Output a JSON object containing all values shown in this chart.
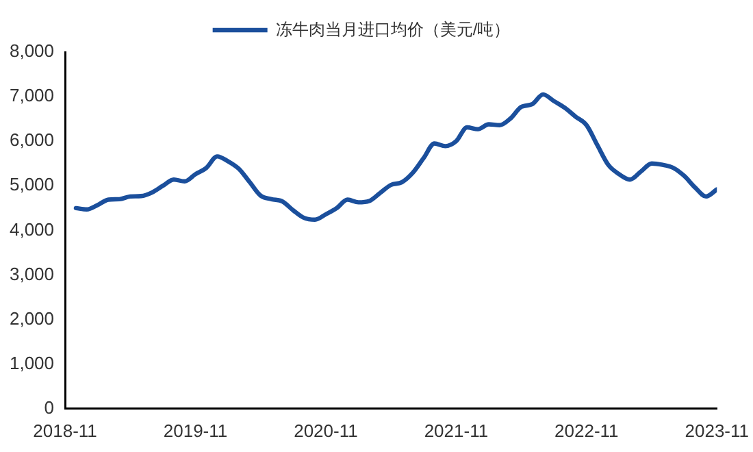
{
  "chart_data": {
    "type": "line",
    "x": [
      "2018-12",
      "2019-01",
      "2019-02",
      "2019-03",
      "2019-04",
      "2019-05",
      "2019-06",
      "2019-07",
      "2019-08",
      "2019-09",
      "2019-10",
      "2019-11",
      "2019-12",
      "2020-01",
      "2020-02",
      "2020-03",
      "2020-04",
      "2020-05",
      "2020-06",
      "2020-07",
      "2020-08",
      "2020-09",
      "2020-10",
      "2020-11",
      "2020-12",
      "2021-01",
      "2021-02",
      "2021-03",
      "2021-04",
      "2021-05",
      "2021-06",
      "2021-07",
      "2021-08",
      "2021-09",
      "2021-10",
      "2021-11",
      "2021-12",
      "2022-01",
      "2022-02",
      "2022-03",
      "2022-04",
      "2022-05",
      "2022-06",
      "2022-07",
      "2022-08",
      "2022-09",
      "2022-10",
      "2022-11",
      "2022-12",
      "2023-01",
      "2023-02",
      "2023-03",
      "2023-04",
      "2023-05",
      "2023-06",
      "2023-07",
      "2023-08",
      "2023-09",
      "2023-10",
      "2023-11"
    ],
    "series": [
      {
        "name": "冻牛肉当月进口均价（美元/吨）",
        "color": "#1b4f9c",
        "values": [
          4500,
          4470,
          4570,
          4690,
          4700,
          4760,
          4770,
          4850,
          5000,
          5140,
          5100,
          5260,
          5400,
          5660,
          5550,
          5380,
          5080,
          4780,
          4700,
          4650,
          4450,
          4280,
          4240,
          4360,
          4500,
          4690,
          4630,
          4660,
          4840,
          5020,
          5080,
          5290,
          5620,
          5950,
          5890,
          6000,
          6310,
          6270,
          6380,
          6360,
          6510,
          6770,
          6830,
          7050,
          6900,
          6750,
          6550,
          6360,
          5910,
          5470,
          5260,
          5140,
          5320,
          5500,
          5470,
          5400,
          5220,
          4960,
          4760,
          4920
        ]
      }
    ],
    "xlim": [
      "2018-11",
      "2023-11"
    ],
    "xticks": [
      "2018-11",
      "2019-11",
      "2020-11",
      "2021-11",
      "2022-11",
      "2023-11"
    ],
    "ylim": [
      0,
      8000
    ],
    "yticks": [
      0,
      {
        "value": 1000,
        "label": "1,000"
      },
      {
        "value": 2000,
        "label": "2,000"
      },
      {
        "value": 3000,
        "label": "3,000"
      },
      {
        "value": 4000,
        "label": "4,000"
      },
      {
        "value": 5000,
        "label": "5,000"
      },
      {
        "value": 6000,
        "label": "6,000"
      },
      {
        "value": 7000,
        "label": "7,000"
      },
      {
        "value": 8000,
        "label": "8,000"
      }
    ],
    "grid": false,
    "legend": "top",
    "marker": "none",
    "line_style": "solid"
  }
}
